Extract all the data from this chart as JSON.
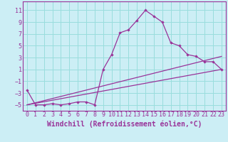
{
  "xlabel": "Windchill (Refroidissement éolien,°C)",
  "background_color": "#cceef5",
  "grid_color": "#99dddd",
  "line_color": "#993399",
  "x_ticks": [
    0,
    1,
    2,
    3,
    4,
    5,
    6,
    7,
    8,
    9,
    10,
    11,
    12,
    13,
    14,
    15,
    16,
    17,
    18,
    19,
    20,
    21,
    22,
    23
  ],
  "y_ticks": [
    -5,
    -3,
    -1,
    1,
    3,
    5,
    7,
    9,
    11
  ],
  "xlim": [
    -0.5,
    23.5
  ],
  "ylim": [
    -6.0,
    12.5
  ],
  "series1_x": [
    0,
    1,
    2,
    3,
    4,
    5,
    6,
    7,
    8,
    9,
    10,
    11,
    12,
    13,
    14,
    15,
    16,
    17,
    18,
    19,
    20,
    21,
    22,
    23
  ],
  "series1_y": [
    -2.5,
    -5,
    -5,
    -4.8,
    -5,
    -4.8,
    -4.5,
    -4.5,
    -5,
    1.0,
    3.5,
    7.2,
    7.7,
    9.3,
    11.0,
    10.0,
    9.0,
    5.5,
    5.0,
    3.5,
    3.2,
    2.3,
    2.3,
    1.0
  ],
  "series2_x": [
    0,
    23
  ],
  "series2_y": [
    -5.0,
    1.0
  ],
  "series3_x": [
    0,
    23
  ],
  "series3_y": [
    -5.0,
    3.2
  ],
  "tick_fontsize": 6,
  "xlabel_fontsize": 7
}
